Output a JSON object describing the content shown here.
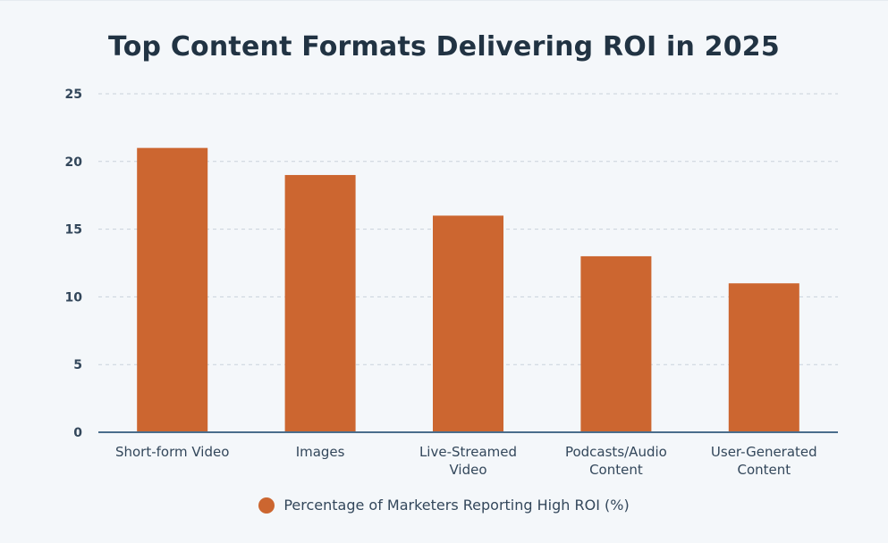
{
  "chart_data": {
    "type": "bar",
    "title": "Top Content Formats Delivering ROI in 2025",
    "categories": [
      [
        "Short-form Video"
      ],
      [
        "Images"
      ],
      [
        "Live-Streamed",
        "Video"
      ],
      [
        "Podcasts/Audio",
        "Content"
      ],
      [
        "User-Generated",
        "Content"
      ]
    ],
    "series": [
      {
        "name": "Percentage of Marketers Reporting High ROI (%)",
        "values": [
          21,
          19,
          16,
          13,
          11
        ]
      }
    ],
    "xlabel": "",
    "ylabel": "",
    "ylim": [
      0,
      25
    ],
    "yticks": [
      0,
      5,
      10,
      15,
      20,
      25
    ],
    "grid": true,
    "legend_position": "bottom-center"
  },
  "colors": {
    "bar": "#cc6630",
    "axis": "#4a6d8c",
    "grid": "#c9d2db"
  }
}
